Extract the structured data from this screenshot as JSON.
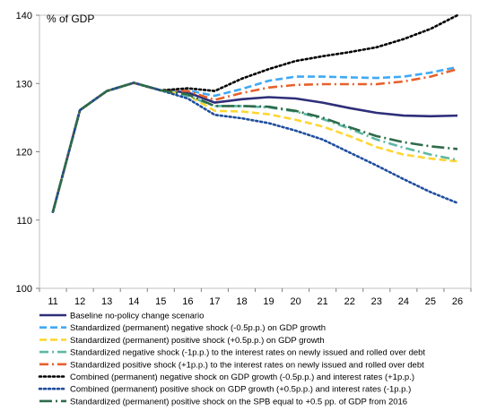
{
  "chart_data": {
    "type": "line",
    "ylabel": "% of GDP",
    "ylim": [
      100,
      140
    ],
    "yticks": [
      100,
      110,
      120,
      130,
      140
    ],
    "categories": [
      "11",
      "12",
      "13",
      "14",
      "15",
      "16",
      "17",
      "18",
      "19",
      "20",
      "21",
      "22",
      "23",
      "24",
      "25",
      "26"
    ],
    "grid": false,
    "legend_position": "bottom",
    "series": [
      {
        "name": "Baseline no-policy change scenario",
        "color": "#2E2E7A",
        "dash": "solid",
        "values": [
          111.2,
          126.1,
          128.9,
          130.1,
          129.0,
          128.7,
          127.2,
          127.7,
          128.0,
          127.8,
          127.2,
          126.4,
          125.7,
          125.3,
          125.2,
          125.3
        ]
      },
      {
        "name": "Standardized (permanent) negative shock (-0.5p.p.) on GDP growth",
        "color": "#3FA9F5",
        "dash": "dash",
        "values": [
          111.2,
          126.1,
          128.9,
          130.1,
          129.0,
          129.0,
          128.2,
          129.2,
          130.4,
          131.0,
          131.0,
          130.9,
          130.8,
          131.0,
          131.6,
          132.4
        ]
      },
      {
        "name": "Standardized (permanent) positive shock (+0.5p.p.) on GDP growth",
        "color": "#FFD633",
        "dash": "dash",
        "values": [
          111.2,
          126.1,
          128.9,
          130.1,
          129.0,
          128.3,
          126.0,
          125.9,
          125.5,
          124.7,
          123.7,
          122.3,
          120.7,
          119.6,
          119.0,
          118.6
        ]
      },
      {
        "name": "Standardized negative shock (-1p.p.) to the interest rates on newly issued and rolled over debt",
        "color": "#5DB8A4",
        "dash": "dashdot",
        "values": [
          111.2,
          126.1,
          128.9,
          130.1,
          129.0,
          128.2,
          126.7,
          126.7,
          126.5,
          125.9,
          124.8,
          123.4,
          121.8,
          120.6,
          119.6,
          118.8
        ]
      },
      {
        "name": "Standardized positive shock (+1p.p.) to the interest rates on newly issued and rolled over debt",
        "color": "#E8602C",
        "dash": "dashdot",
        "values": [
          111.2,
          126.1,
          128.9,
          130.1,
          129.0,
          128.9,
          127.6,
          128.6,
          129.4,
          129.8,
          129.9,
          129.9,
          129.9,
          130.3,
          131.0,
          132.1
        ]
      },
      {
        "name": "Combined (permanent) negative shock on GDP growth (-0.5p.p.) and interest rates (+1p.p.)",
        "color": "#000000",
        "dash": "dot",
        "values": [
          111.2,
          126.1,
          128.9,
          130.1,
          129.0,
          129.3,
          128.9,
          130.7,
          132.1,
          133.3,
          134.0,
          134.6,
          135.3,
          136.5,
          138.0,
          140.0
        ]
      },
      {
        "name": "Combined (permanent) positive shock on GDP growth (+0.5p.p.) and interest rates (-1p.p.)",
        "color": "#1F4E9E",
        "dash": "dot",
        "values": [
          111.2,
          126.1,
          128.9,
          130.1,
          129.0,
          127.8,
          125.4,
          124.9,
          124.2,
          123.1,
          121.8,
          119.9,
          118.0,
          116.0,
          114.1,
          112.5
        ]
      },
      {
        "name": "Standardized (permanent) positive shock on the SPB equal to +0.5 pp. of GDP from 2016",
        "color": "#2E6B4A",
        "dash": "longdashdot",
        "values": [
          111.2,
          126.1,
          128.9,
          130.1,
          129.0,
          128.4,
          126.7,
          126.7,
          126.6,
          126.0,
          125.0,
          123.6,
          122.3,
          121.4,
          120.8,
          120.4
        ]
      }
    ]
  }
}
